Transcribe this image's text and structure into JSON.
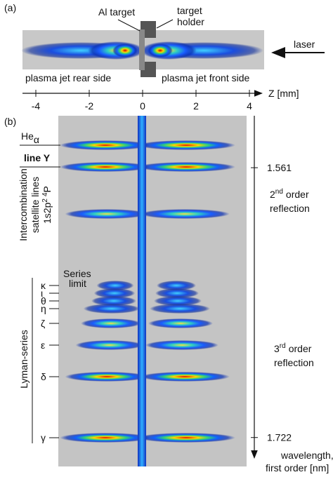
{
  "panel_a": {
    "label": "(a)",
    "al_target": "Al target",
    "holder_line1": "target",
    "holder_line2": "holder",
    "laser": "laser",
    "rear_side": "plasma jet rear side",
    "front_side": "plasma jet front side",
    "axis": {
      "label": "Z [mm]",
      "lim": [
        -4.5,
        4.5
      ],
      "ticks": [
        -4,
        -2,
        0,
        2,
        4
      ]
    }
  },
  "panel_b": {
    "label": "(b)",
    "he": "He",
    "he_sub": "α",
    "line_y": "line Y",
    "intercomb_line1": "Intercombination",
    "intercomb_line2": "satellite lines",
    "term_a": "1s2p",
    "term_b": "2",
    "term_c": "4",
    "term_d": "P",
    "series_line1": "Series",
    "series_line2": "limit",
    "lyman": "Lyman-series",
    "greek": [
      "κ",
      "ι",
      "θ",
      "η",
      "ζ",
      "ε",
      "δ",
      "γ"
    ],
    "second_num": "2",
    "second_sup": "nd",
    "second_rest": "order",
    "second_line2": "reflection",
    "third_num": "3",
    "third_sup": "rd",
    "third_rest": "order",
    "third_line2": "reflection",
    "axis": {
      "lim": [
        1.53,
        1.733
      ],
      "ticks": [
        1.561,
        1.722
      ],
      "label_line1": "wavelength,",
      "label_line2": "first order [nm]"
    }
  }
}
